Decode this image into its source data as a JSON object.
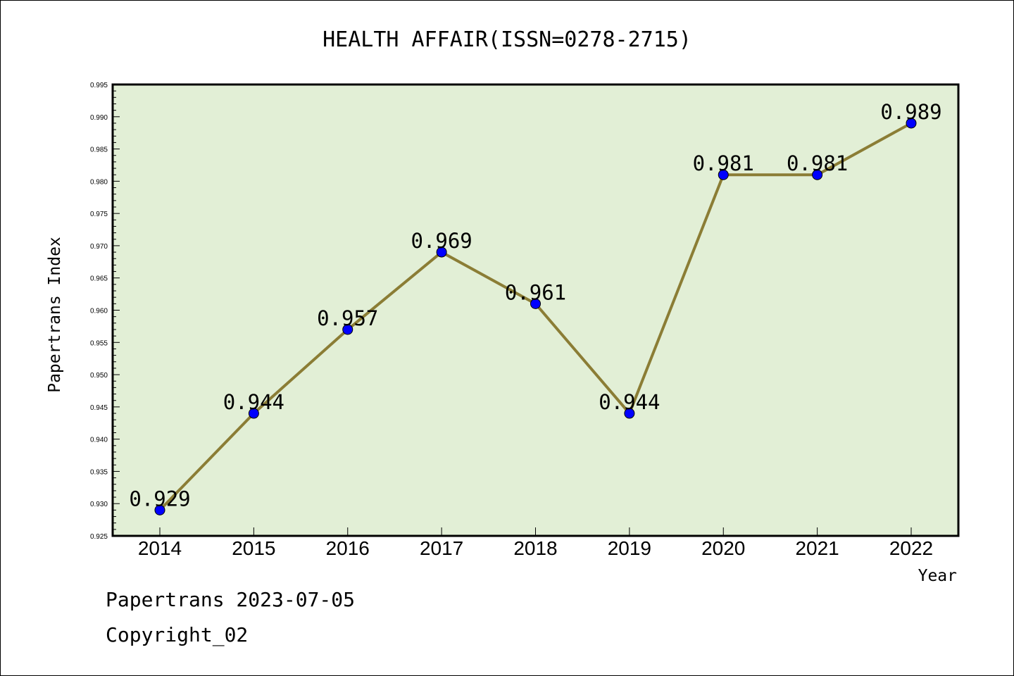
{
  "footer": {
    "line1": "Papertrans 2023-07-05",
    "line2": "Copyright_02"
  },
  "chart_data": {
    "type": "line",
    "title": "HEALTH AFFAIR(ISSN=0278-2715)",
    "xlabel": "Year",
    "ylabel": "Papertrans Index",
    "categories": [
      "2014",
      "2015",
      "2016",
      "2017",
      "2018",
      "2019",
      "2020",
      "2021",
      "2022"
    ],
    "values": [
      0.929,
      0.944,
      0.957,
      0.969,
      0.961,
      0.944,
      0.981,
      0.981,
      0.989
    ],
    "data_labels": [
      "0.929",
      "0.944",
      "0.957",
      "0.969",
      "0.961",
      "0.944",
      "0.981",
      "0.981",
      "0.989"
    ],
    "ylim": [
      0.925,
      0.995
    ],
    "yticks": [
      "0.925",
      "0.930",
      "0.935",
      "0.940",
      "0.945",
      "0.950",
      "0.955",
      "0.960",
      "0.965",
      "0.970",
      "0.975",
      "0.980",
      "0.985",
      "0.990",
      "0.995"
    ],
    "grid": false,
    "colors": {
      "plot_background": "#e2efd6",
      "line": "#8b7d35",
      "marker": "#0000ff",
      "axis": "#000000"
    }
  }
}
